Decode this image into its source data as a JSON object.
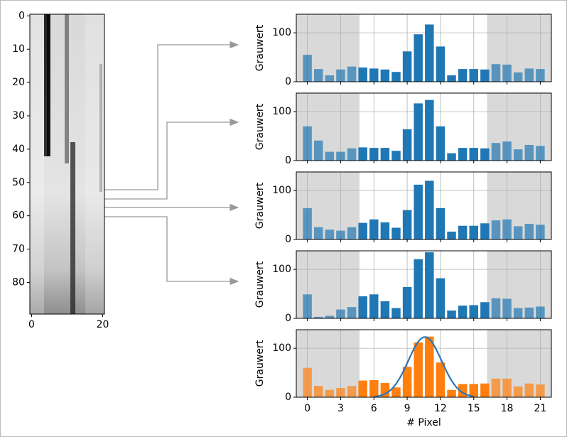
{
  "chart_data": [
    {
      "type": "image",
      "xlim": [
        -0.5,
        20.5
      ],
      "ylim": [
        89.5,
        -0.5
      ],
      "xticks": [
        0,
        20
      ],
      "yticks": [
        0,
        10,
        20,
        30,
        40,
        50,
        60,
        70,
        80
      ]
    },
    {
      "type": "bar",
      "ylabel": "Grauwert",
      "color": "#1f77b4",
      "grid": true,
      "show_xtick_labels": false,
      "x": [
        0,
        1,
        2,
        3,
        4,
        5,
        6,
        7,
        8,
        9,
        10,
        11,
        12,
        13,
        14,
        15,
        16,
        17,
        18,
        19,
        20,
        21
      ],
      "values": [
        55,
        26,
        13,
        25,
        31,
        29,
        27,
        25,
        20,
        62,
        97,
        117,
        72,
        13,
        26,
        26,
        25,
        36,
        35,
        19,
        27,
        26
      ],
      "xlim": [
        -1,
        22
      ],
      "xticks": [
        0,
        3,
        6,
        9,
        12,
        15,
        18,
        21
      ],
      "ylim": [
        0,
        138
      ],
      "yticks": [
        0,
        100
      ],
      "shaded": [
        [
          -1,
          4.7
        ],
        [
          16.2,
          22
        ]
      ]
    },
    {
      "type": "bar",
      "ylabel": "Grauwert",
      "color": "#1f77b4",
      "grid": true,
      "show_xtick_labels": false,
      "x": [
        0,
        1,
        2,
        3,
        4,
        5,
        6,
        7,
        8,
        9,
        10,
        11,
        12,
        13,
        14,
        15,
        16,
        17,
        18,
        19,
        20,
        21
      ],
      "values": [
        70,
        41,
        18,
        18,
        25,
        27,
        26,
        26,
        20,
        64,
        117,
        124,
        70,
        15,
        26,
        26,
        25,
        36,
        39,
        23,
        32,
        30
      ],
      "xlim": [
        -1,
        22
      ],
      "xticks": [
        0,
        3,
        6,
        9,
        12,
        15,
        18,
        21
      ],
      "ylim": [
        0,
        138
      ],
      "yticks": [
        0,
        100
      ],
      "shaded": [
        [
          -1,
          4.7
        ],
        [
          16.2,
          22
        ]
      ]
    },
    {
      "type": "bar",
      "ylabel": "Grauwert",
      "color": "#1f77b4",
      "grid": true,
      "show_xtick_labels": false,
      "x": [
        0,
        1,
        2,
        3,
        4,
        5,
        6,
        7,
        8,
        9,
        10,
        11,
        12,
        13,
        14,
        15,
        16,
        17,
        18,
        19,
        20,
        21
      ],
      "values": [
        64,
        25,
        20,
        18,
        25,
        34,
        41,
        35,
        24,
        60,
        112,
        120,
        64,
        16,
        28,
        28,
        33,
        39,
        41,
        27,
        32,
        30
      ],
      "xlim": [
        -1,
        22
      ],
      "xticks": [
        0,
        3,
        6,
        9,
        12,
        15,
        18,
        21
      ],
      "ylim": [
        0,
        138
      ],
      "yticks": [
        0,
        100
      ],
      "shaded": [
        [
          -1,
          4.7
        ],
        [
          16.2,
          22
        ]
      ]
    },
    {
      "type": "bar",
      "ylabel": "Grauwert",
      "color": "#1f77b4",
      "grid": true,
      "show_xtick_labels": false,
      "x": [
        0,
        1,
        2,
        3,
        4,
        5,
        6,
        7,
        8,
        9,
        10,
        11,
        12,
        13,
        14,
        15,
        16,
        17,
        18,
        19,
        20,
        21
      ],
      "values": [
        49,
        3,
        5,
        18,
        23,
        45,
        49,
        35,
        21,
        64,
        121,
        135,
        82,
        16,
        26,
        27,
        33,
        41,
        40,
        21,
        22,
        24
      ],
      "xlim": [
        -1,
        22
      ],
      "xticks": [
        0,
        3,
        6,
        9,
        12,
        15,
        18,
        21
      ],
      "ylim": [
        0,
        138
      ],
      "yticks": [
        0,
        100
      ],
      "shaded": [
        [
          -1,
          4.7
        ],
        [
          16.2,
          22
        ]
      ]
    },
    {
      "type": "bar",
      "ylabel": "Grauwert",
      "xlabel": "# Pixel",
      "color": "#ff7f0e",
      "grid": true,
      "show_xtick_labels": true,
      "x": [
        0,
        1,
        2,
        3,
        4,
        5,
        6,
        7,
        8,
        9,
        10,
        11,
        12,
        13,
        14,
        15,
        16,
        17,
        18,
        19,
        20,
        21
      ],
      "values": [
        60,
        23,
        15,
        19,
        23,
        34,
        35,
        29,
        20,
        62,
        112,
        124,
        71,
        15,
        27,
        27,
        28,
        38,
        38,
        22,
        28,
        26
      ],
      "xlim": [
        -1,
        22
      ],
      "xticks": [
        0,
        3,
        6,
        9,
        12,
        15,
        18,
        21
      ],
      "ylim": [
        0,
        138
      ],
      "yticks": [
        0,
        100
      ],
      "shaded": [
        [
          -1,
          4.7
        ],
        [
          16.2,
          22
        ]
      ],
      "fit": {
        "amplitude": 123,
        "mean": 10.6,
        "sigma": 1.5,
        "range": [
          6,
          15
        ],
        "color": "#2f75b5"
      }
    }
  ]
}
